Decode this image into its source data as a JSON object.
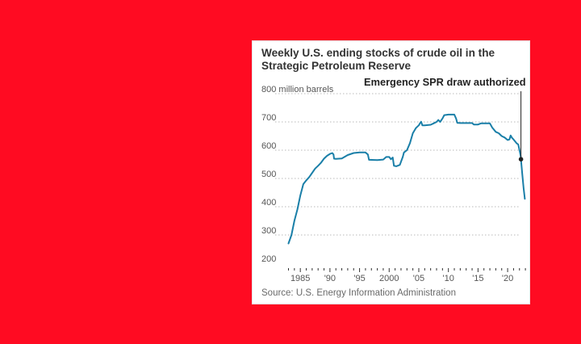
{
  "chart_data": {
    "type": "line",
    "title": "Weekly U.S. ending stocks of crude oil in the Strategic Petroleum Reserve",
    "ylabel": "million barrels",
    "y_ticks": [
      {
        "value": 800,
        "label": "800 million barrels"
      },
      {
        "value": 700,
        "label": "700"
      },
      {
        "value": 600,
        "label": "600"
      },
      {
        "value": 500,
        "label": "500"
      },
      {
        "value": 400,
        "label": "400"
      },
      {
        "value": 300,
        "label": "300"
      },
      {
        "value": 200,
        "label": "200"
      }
    ],
    "x_ticks": [
      {
        "value": 1985,
        "label": "1985"
      },
      {
        "value": 1990,
        "label": "'90"
      },
      {
        "value": 1995,
        "label": "'95"
      },
      {
        "value": 2000,
        "label": "2000"
      },
      {
        "value": 2005,
        "label": "'05"
      },
      {
        "value": 2010,
        "label": "'10"
      },
      {
        "value": 2015,
        "label": "'15"
      },
      {
        "value": 2020,
        "label": "'20"
      }
    ],
    "xlim": [
      1982,
      2023
    ],
    "ylim": [
      200,
      800
    ],
    "grid": true,
    "series": [
      {
        "color": "#1a7fa8",
        "points": [
          [
            1983.0,
            270
          ],
          [
            1983.5,
            300
          ],
          [
            1984.0,
            350
          ],
          [
            1984.5,
            390
          ],
          [
            1985.0,
            440
          ],
          [
            1985.5,
            480
          ],
          [
            1986.0,
            493
          ],
          [
            1986.5,
            505
          ],
          [
            1987.0,
            520
          ],
          [
            1987.5,
            535
          ],
          [
            1988.0,
            545
          ],
          [
            1988.5,
            556
          ],
          [
            1989.0,
            570
          ],
          [
            1989.5,
            580
          ],
          [
            1990.0,
            587
          ],
          [
            1990.4,
            590
          ],
          [
            1990.6,
            585
          ],
          [
            1990.7,
            570
          ],
          [
            1991.0,
            569
          ],
          [
            1992.0,
            571
          ],
          [
            1993.0,
            583
          ],
          [
            1994.0,
            590
          ],
          [
            1995.0,
            592
          ],
          [
            1996.0,
            592
          ],
          [
            1996.4,
            585
          ],
          [
            1996.6,
            566
          ],
          [
            1998.0,
            565
          ],
          [
            1999.0,
            567
          ],
          [
            1999.5,
            576
          ],
          [
            2000.0,
            576
          ],
          [
            2000.3,
            568
          ],
          [
            2000.6,
            574
          ],
          [
            2000.8,
            545
          ],
          [
            2001.2,
            543
          ],
          [
            2001.8,
            548
          ],
          [
            2002.3,
            577
          ],
          [
            2002.5,
            592
          ],
          [
            2003.0,
            600
          ],
          [
            2003.5,
            625
          ],
          [
            2004.0,
            660
          ],
          [
            2004.5,
            678
          ],
          [
            2005.0,
            688
          ],
          [
            2005.2,
            695
          ],
          [
            2005.4,
            701
          ],
          [
            2005.6,
            688
          ],
          [
            2006.0,
            688
          ],
          [
            2007.0,
            690
          ],
          [
            2007.5,
            695
          ],
          [
            2008.0,
            700
          ],
          [
            2008.3,
            707
          ],
          [
            2008.6,
            700
          ],
          [
            2009.0,
            712
          ],
          [
            2009.3,
            724
          ],
          [
            2010.0,
            726
          ],
          [
            2011.0,
            726
          ],
          [
            2011.3,
            712
          ],
          [
            2011.5,
            697
          ],
          [
            2012.0,
            696
          ],
          [
            2013.0,
            696
          ],
          [
            2014.0,
            696
          ],
          [
            2014.3,
            691
          ],
          [
            2015.0,
            691
          ],
          [
            2015.5,
            695
          ],
          [
            2016.0,
            695
          ],
          [
            2017.0,
            695
          ],
          [
            2017.4,
            680
          ],
          [
            2018.0,
            665
          ],
          [
            2018.5,
            660
          ],
          [
            2019.0,
            650
          ],
          [
            2019.5,
            645
          ],
          [
            2020.0,
            636
          ],
          [
            2020.3,
            638
          ],
          [
            2020.5,
            652
          ],
          [
            2020.7,
            645
          ],
          [
            2021.0,
            638
          ],
          [
            2021.5,
            625
          ],
          [
            2021.8,
            620
          ],
          [
            2022.0,
            600
          ],
          [
            2022.2,
            580
          ],
          [
            2022.5,
            510
          ],
          [
            2022.7,
            465
          ],
          [
            2022.9,
            428
          ]
        ]
      }
    ],
    "annotation": {
      "label": "Emergency SPR draw authorized",
      "x": 2022.25,
      "y": 568
    },
    "source": "Source: U.S. Energy Information Administration"
  }
}
